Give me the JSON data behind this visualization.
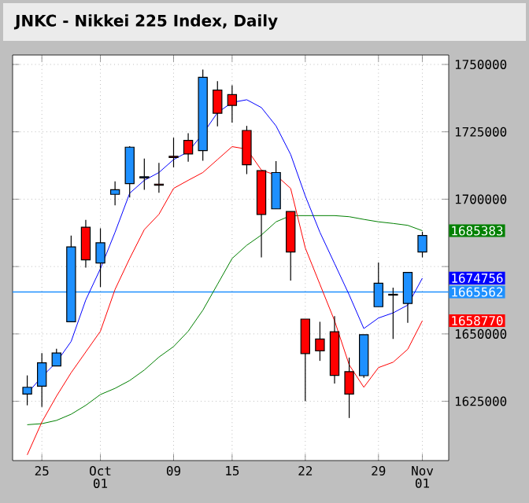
{
  "chart_data": {
    "type": "candlestick",
    "title": "JNKC - Nikkei 225 Index, Daily",
    "categories": [
      null,
      "25",
      null,
      null,
      null,
      "Oct 01",
      null,
      null,
      null,
      null,
      "09",
      null,
      null,
      null,
      "15",
      null,
      null,
      null,
      null,
      "22",
      null,
      null,
      null,
      null,
      "29",
      null,
      null,
      "Nov 01"
    ],
    "ohlc": [
      [
        1627700,
        1634600,
        1623500,
        1630200
      ],
      [
        1630600,
        1642900,
        1622900,
        1639300
      ],
      [
        1638100,
        1644500,
        1638100,
        1642900
      ],
      [
        1654500,
        1686500,
        1654500,
        1682300
      ],
      [
        1689600,
        1692300,
        1674600,
        1677500
      ],
      [
        1676300,
        1689200,
        1667400,
        1683800
      ],
      [
        1701800,
        1706600,
        1697700,
        1703500
      ],
      [
        1705800,
        1719700,
        1700600,
        1719300
      ],
      [
        1707900,
        1715100,
        1703500,
        1708300
      ],
      [
        1705600,
        1713500,
        1702400,
        1705200
      ],
      [
        1715900,
        1722800,
        1711800,
        1715500
      ],
      [
        1721800,
        1724500,
        1713900,
        1716800
      ],
      [
        1718000,
        1748100,
        1714300,
        1745200
      ],
      [
        1740500,
        1743800,
        1727000,
        1731900
      ],
      [
        1738800,
        1742300,
        1728400,
        1734800
      ],
      [
        1725500,
        1727200,
        1709300,
        1712800
      ],
      [
        1710600,
        1710600,
        1678400,
        1694300
      ],
      [
        1696400,
        1714100,
        1696400,
        1709900
      ],
      [
        1695400,
        1695400,
        1669800,
        1680400
      ],
      [
        1655500,
        1655500,
        1625000,
        1642700
      ],
      [
        1648100,
        1654500,
        1640000,
        1643700
      ],
      [
        1650800,
        1656600,
        1631600,
        1634600
      ],
      [
        1636000,
        1641200,
        1618800,
        1627700
      ],
      [
        1634500,
        1649700,
        1633700,
        1649700
      ],
      [
        1660100,
        1676500,
        1660100,
        1668800
      ],
      [
        1664700,
        1667200,
        1648100,
        1664400
      ],
      [
        1661300,
        1672800,
        1654100,
        1672800
      ],
      [
        1680400,
        1687900,
        1678400,
        1686500
      ]
    ],
    "colors": [
      "#1e90ff",
      "#1e90ff",
      "#1e90ff",
      "#1e90ff",
      "#ff0000",
      "#1e90ff",
      "#1e90ff",
      "#1e90ff",
      "#1e90ff",
      "#ff0000",
      "#ff0000",
      "#ff0000",
      "#1e90ff",
      "#ff0000",
      "#ff0000",
      "#ff0000",
      "#ff0000",
      "#1e90ff",
      "#ff0000",
      "#ff0000",
      "#ff0000",
      "#ff0000",
      "#ff0000",
      "#1e90ff",
      "#1e90ff",
      "#ff0000",
      "#1e90ff",
      "#1e90ff"
    ],
    "series": [
      {
        "type": "line",
        "color": "#008000",
        "values": [
          1616300,
          1616700,
          1617900,
          1620200,
          1623500,
          1627500,
          1629800,
          1632700,
          1636600,
          1641400,
          1645300,
          1651000,
          1658800,
          1668400,
          1678000,
          1682900,
          1686700,
          1691600,
          1693900,
          1693900,
          1693900,
          1693900,
          1693500,
          1692500,
          1691600,
          1691000,
          1690300,
          1688300
        ]
      },
      {
        "type": "line",
        "color": "#0000ff",
        "values": [
          1627900,
          1634100,
          1639500,
          1647200,
          1662600,
          1674200,
          1687700,
          1702200,
          1707000,
          1709900,
          1714700,
          1717600,
          1724300,
          1732100,
          1735900,
          1736900,
          1734000,
          1727200,
          1716600,
          1701200,
          1687700,
          1676100,
          1664500,
          1652000,
          1655900,
          1657800,
          1660700,
          1670700
        ]
      },
      {
        "type": "line",
        "color": "#ff0000",
        "values": [
          1605100,
          1617300,
          1626900,
          1635600,
          1643300,
          1651000,
          1666500,
          1678000,
          1688700,
          1694400,
          1704000,
          1707000,
          1709900,
          1714700,
          1719500,
          1718600,
          1710800,
          1708900,
          1704000,
          1681900,
          1668400,
          1654900,
          1638500,
          1630200,
          1637500,
          1639500,
          1644300,
          1654900
        ]
      }
    ],
    "annotations": [
      "1685383",
      "1674756",
      "1658770"
    ],
    "ref_lines": [
      {
        "axis": "y",
        "value": 1665562,
        "label": "1665562",
        "color": "#1e90ff"
      }
    ],
    "ylim": [
      1603000,
      1753500
    ],
    "yticks": [
      1625000,
      1650000,
      {
        "value": 1675000,
        "label": null
      },
      1700000,
      1725000,
      1750000
    ],
    "grid": true
  }
}
